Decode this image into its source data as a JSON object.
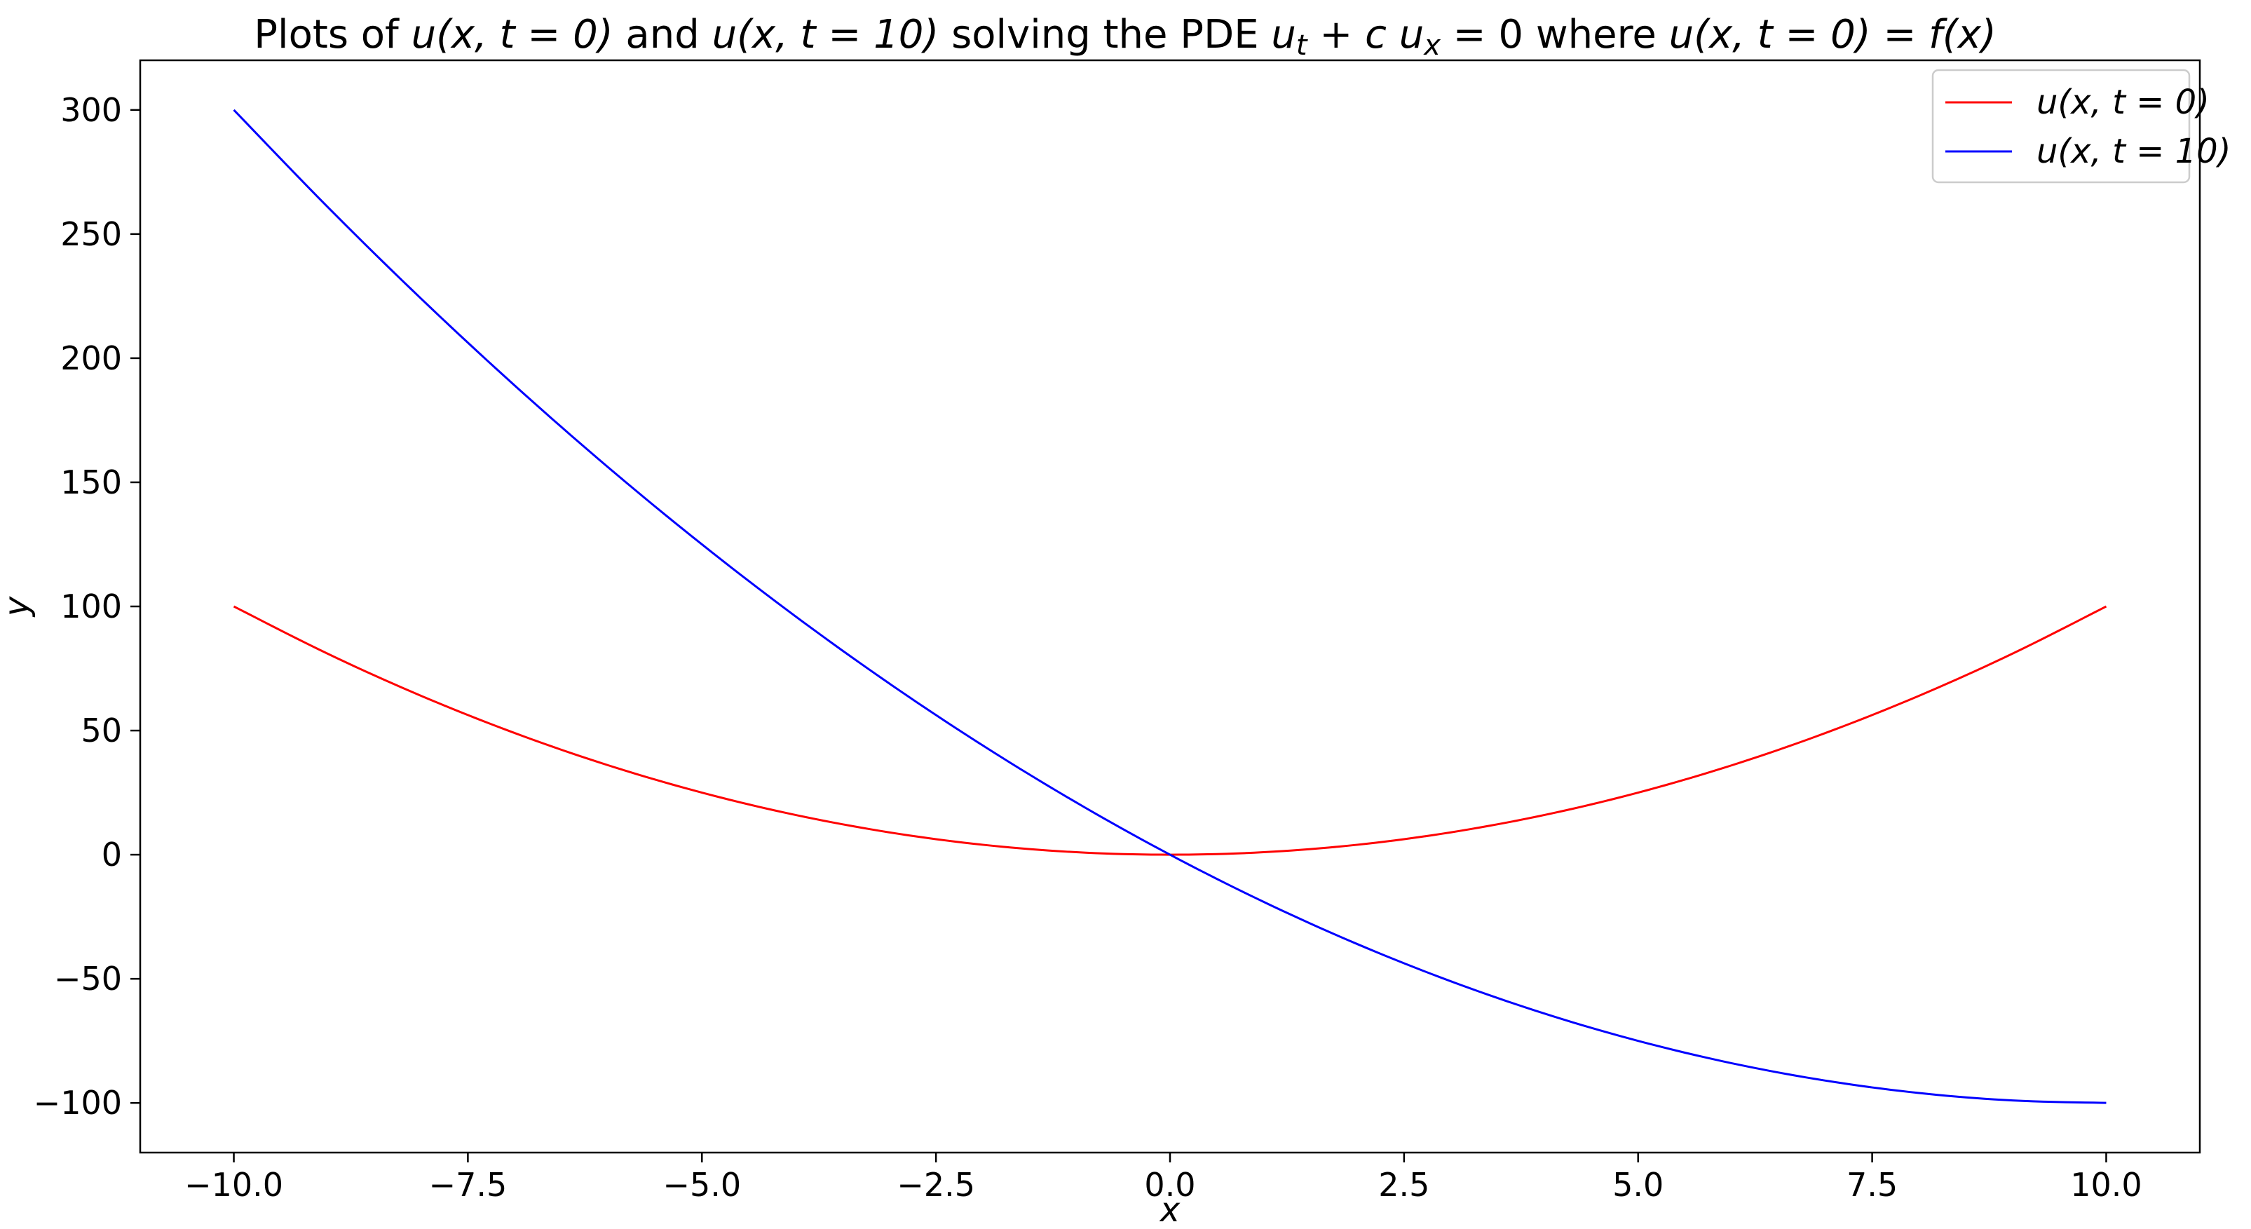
{
  "chart_data": {
    "type": "line",
    "title": {
      "prefix": "Plots of ",
      "part1": "u(x, t = 0)",
      "connector": " and ",
      "part2": "u(x, t = 10)",
      "middle": " solving the PDE ",
      "pde": "u",
      "pde_sub_t": "t",
      "pde_plus": " + c u",
      "pde_sub_x": "x",
      "pde_eq": " = 0",
      "where": " where ",
      "cond": "u(x, t = 0) = f(x)"
    },
    "xlabel": "x",
    "ylabel": "y",
    "xlim": [
      -11.0,
      11.0
    ],
    "ylim": [
      -120,
      320
    ],
    "xticks": [
      -10.0,
      -7.5,
      -5.0,
      -2.5,
      0.0,
      2.5,
      5.0,
      7.5,
      10.0
    ],
    "xtick_labels": [
      "−10.0",
      "−7.5",
      "−5.0",
      "−2.5",
      "0.0",
      "2.5",
      "5.0",
      "7.5",
      "10.0"
    ],
    "yticks": [
      -100,
      -50,
      0,
      50,
      100,
      150,
      200,
      250,
      300
    ],
    "ytick_labels": [
      "−100",
      "−50",
      "0",
      "50",
      "100",
      "150",
      "200",
      "250",
      "300"
    ],
    "grid": false,
    "legend_position": "top-right",
    "series": [
      {
        "name": "u(x, t = 0)",
        "color": "#ff0000",
        "x": [
          -10,
          -9,
          -8,
          -7,
          -6,
          -5,
          -4,
          -3,
          -2,
          -1,
          0,
          1,
          2,
          3,
          4,
          5,
          6,
          7,
          8,
          9,
          10
        ],
        "y": [
          100,
          81,
          64,
          49,
          36,
          25,
          16,
          9,
          4,
          1,
          0,
          1,
          4,
          9,
          16,
          25,
          36,
          49,
          64,
          81,
          100
        ]
      },
      {
        "name": "u(x, t = 10)",
        "color": "#0000ff",
        "x": [
          -10,
          -9,
          -8,
          -7,
          -6,
          -5,
          -4,
          -3,
          -2,
          -1,
          0,
          1,
          2,
          3,
          4,
          5,
          6,
          7,
          8,
          9,
          10
        ],
        "y": [
          300,
          261,
          224,
          189,
          156,
          125,
          96,
          69,
          44,
          21,
          0,
          -19,
          -36,
          -51,
          -64,
          -75,
          -84,
          -91,
          -96,
          -99,
          -100
        ]
      }
    ]
  }
}
